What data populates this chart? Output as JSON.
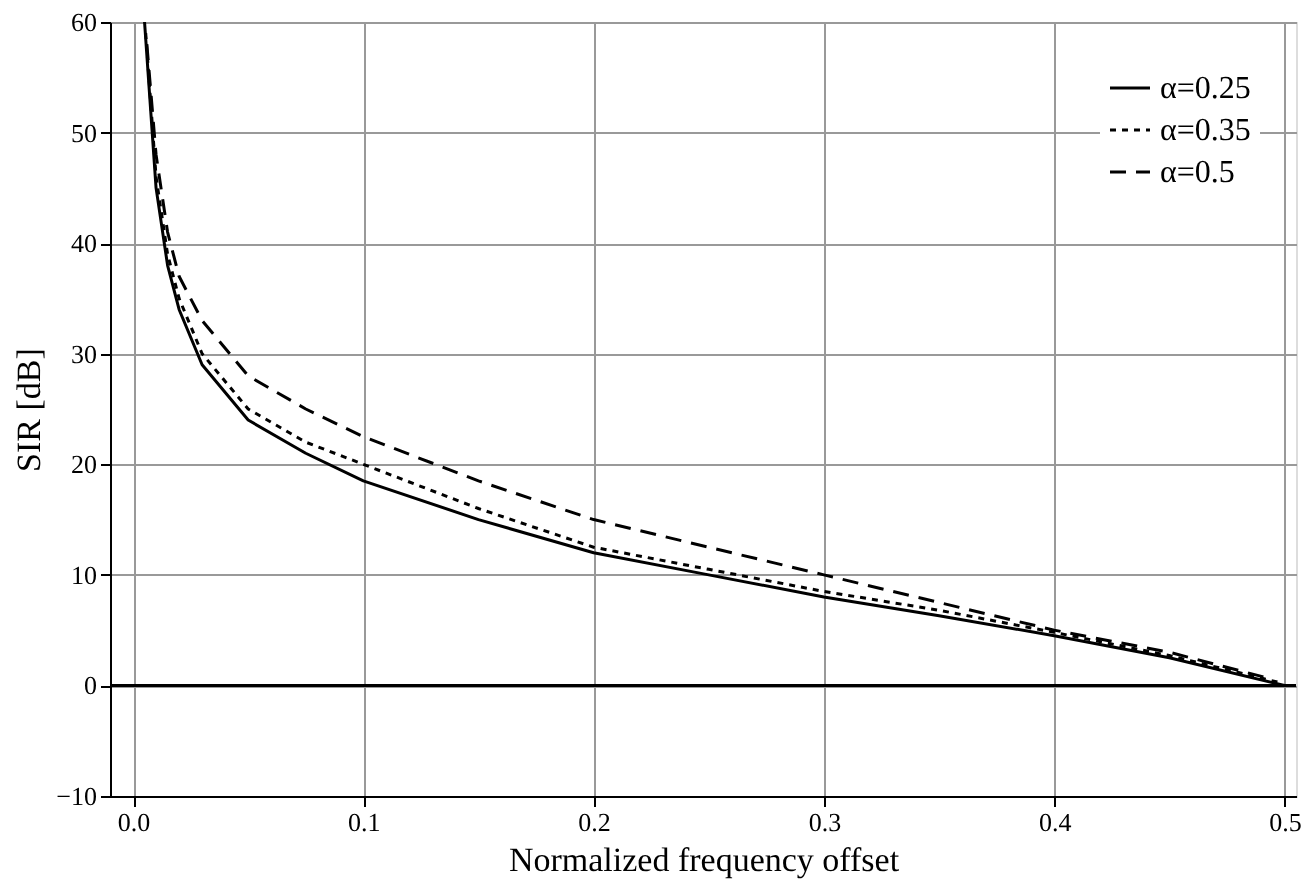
{
  "chart_data": {
    "type": "line",
    "xlabel": "Normalized frequency offset",
    "ylabel": "SIR [dB]",
    "xlim": [
      -0.01,
      0.505
    ],
    "ylim": [
      -10,
      60
    ],
    "xticks": [
      {
        "value": 0,
        "label": "0.0"
      },
      0.1,
      0.2,
      0.3,
      0.4,
      0.5
    ],
    "yticks": [
      -10,
      0,
      10,
      20,
      30,
      40,
      50,
      60
    ],
    "grid": true,
    "legend": "top right",
    "ref_lines": [
      {
        "axis": "y",
        "value": 0,
        "label": null,
        "color": "#000000",
        "line_style": "solid"
      }
    ],
    "x": [
      0.005,
      0.01,
      0.015,
      0.02,
      0.03,
      0.05,
      0.075,
      0.1,
      0.15,
      0.2,
      0.25,
      0.3,
      0.35,
      0.4,
      0.45,
      0.5
    ],
    "series": [
      {
        "name": "α=0.25",
        "color": "#000000",
        "line_style": "solid",
        "values": [
          60,
          45,
          38,
          34,
          29,
          24,
          21,
          18.5,
          15,
          12,
          10,
          8,
          6.3,
          4.5,
          2.5,
          0
        ]
      },
      {
        "name": "α=0.35",
        "color": "#000000",
        "line_style": "dotted",
        "x": [
          0.0055,
          0.01,
          0.015,
          0.02,
          0.03,
          0.05,
          0.075,
          0.1,
          0.15,
          0.2,
          0.25,
          0.3,
          0.35,
          0.4,
          0.45,
          0.497
        ],
        "values": [
          59,
          46,
          39,
          35,
          30,
          25,
          22,
          20,
          16,
          12.5,
          10.5,
          8.5,
          6.8,
          4.8,
          2.7,
          0.3
        ]
      },
      {
        "name": "α=0.5",
        "color": "#000000",
        "line_style": "dashed",
        "x": [
          0.006,
          0.01,
          0.015,
          0.02,
          0.03,
          0.05,
          0.075,
          0.1,
          0.15,
          0.2,
          0.25,
          0.3,
          0.35,
          0.4,
          0.45,
          0.494
        ],
        "values": [
          58,
          48,
          41,
          37,
          33,
          28,
          25,
          22.5,
          18.5,
          15,
          12.5,
          10,
          7.5,
          5,
          3,
          0.6
        ]
      }
    ]
  }
}
